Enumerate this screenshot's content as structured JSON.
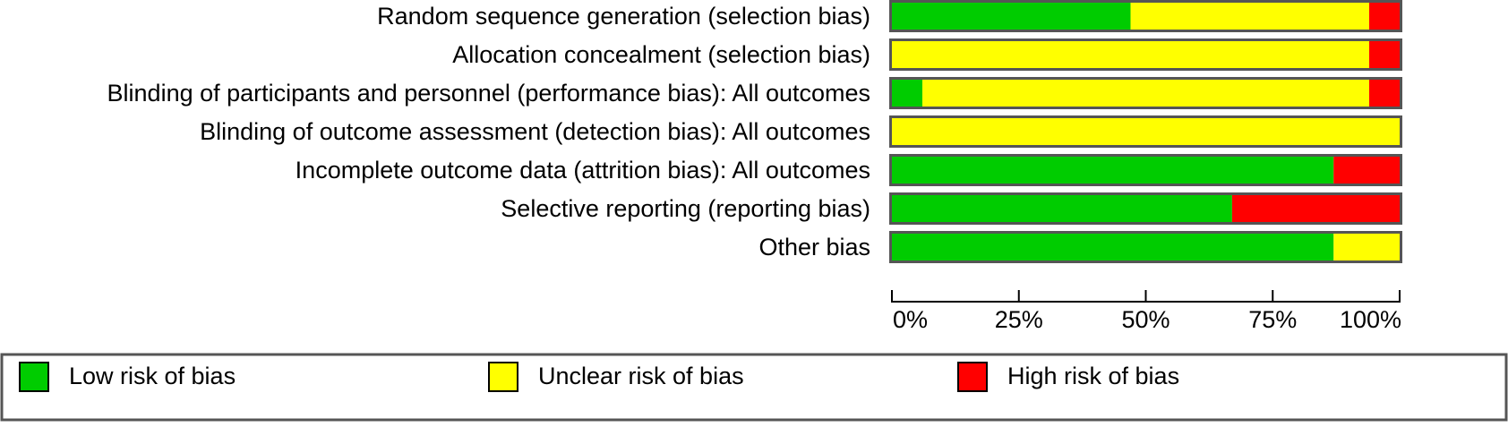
{
  "chart_data": {
    "type": "bar",
    "orientation": "horizontal",
    "stacked": true,
    "units": "percent",
    "categories": [
      "Random sequence generation (selection bias)",
      "Allocation concealment (selection bias)",
      "Blinding of participants and personnel (performance bias): All outcomes",
      "Blinding of outcome assessment (detection bias): All outcomes",
      "Incomplete outcome data (attrition bias): All outcomes",
      "Selective reporting (reporting bias)",
      "Other bias"
    ],
    "series": [
      {
        "name": "Low risk of bias",
        "color": "#00cc00",
        "values": [
          47,
          0,
          6,
          0,
          87,
          67,
          87
        ]
      },
      {
        "name": "Unclear risk of bias",
        "color": "#ffff00",
        "values": [
          47,
          94,
          88,
          100,
          0,
          0,
          13
        ]
      },
      {
        "name": "High risk of bias",
        "color": "#ff0000",
        "values": [
          6,
          6,
          6,
          0,
          13,
          33,
          0
        ]
      }
    ],
    "xlim": [
      0,
      100
    ],
    "x_ticks": [
      "0%",
      "25%",
      "50%",
      "75%",
      "100%"
    ],
    "title": "",
    "xlabel": "",
    "ylabel": "",
    "grid": false,
    "legend_position": "bottom"
  }
}
